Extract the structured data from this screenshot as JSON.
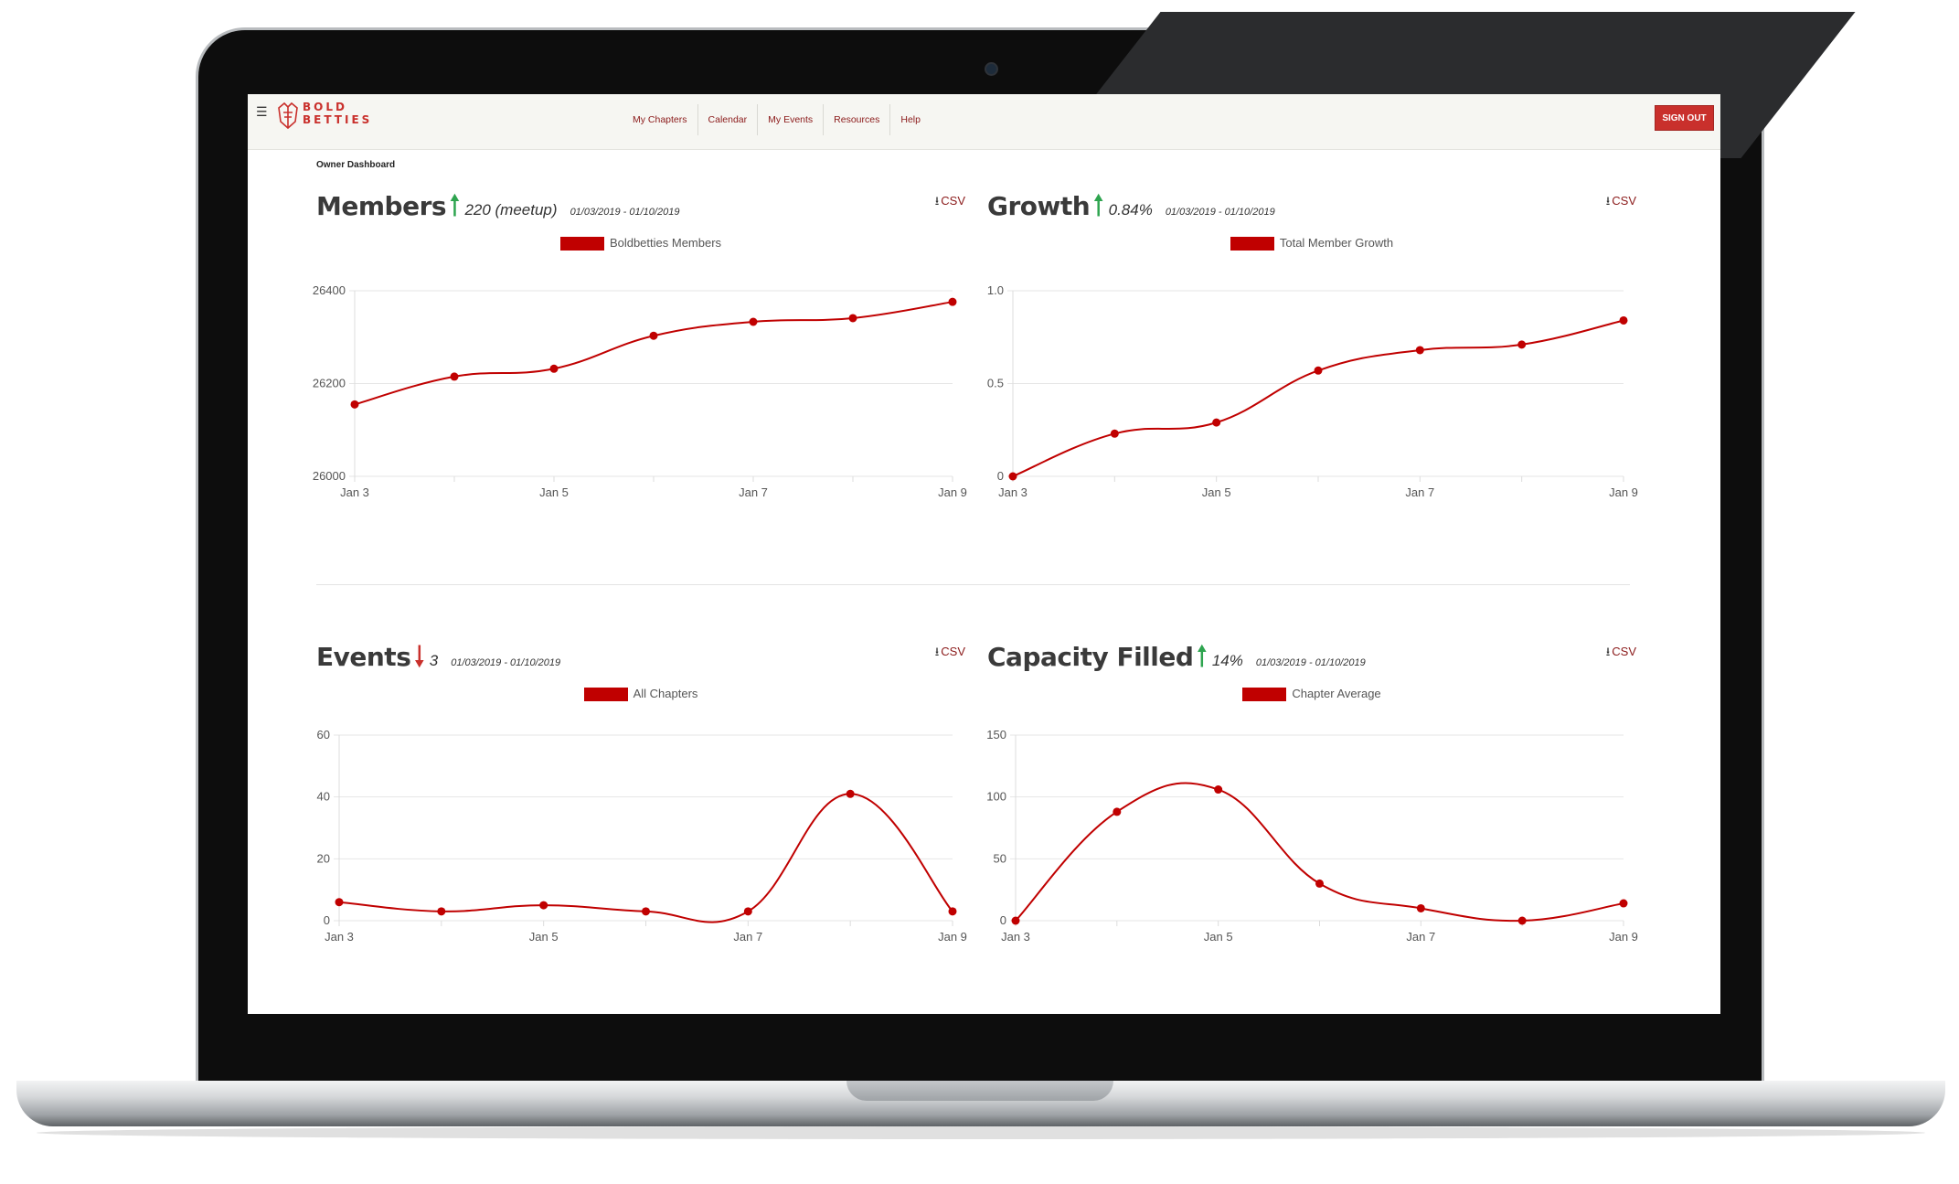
{
  "nav": {
    "logo_text_line1": "BOLD",
    "logo_text_line2": "BETTIES",
    "links": [
      "My Chapters",
      "Calendar",
      "My Events",
      "Resources",
      "Help"
    ],
    "signout": "SIGN OUT"
  },
  "dashboard_title": "Owner Dashboard",
  "colors": {
    "accent": "#c00000",
    "up": "#2ea44f",
    "down": "#c9302c",
    "nav_bg": "#f6f6f2"
  },
  "icons": {
    "menu": "hamburger-icon",
    "download": "download-icon",
    "trend_up": "arrow-up-icon",
    "trend_down": "arrow-down-icon"
  },
  "panels": {
    "members": {
      "title": "Members",
      "trend": "up",
      "stat": "220 (meetup)",
      "range": "01/03/2019 - 01/10/2019",
      "csv": "CSV"
    },
    "growth": {
      "title": "Growth",
      "trend": "up",
      "stat": "0.84%",
      "range": "01/03/2019 - 01/10/2019",
      "csv": "CSV"
    },
    "events": {
      "title": "Events",
      "trend": "down",
      "stat": "3",
      "range": "01/03/2019 - 01/10/2019",
      "csv": "CSV"
    },
    "capacity": {
      "title": "Capacity Filled",
      "trend": "up",
      "stat": "14%",
      "range": "01/03/2019 - 01/10/2019",
      "csv": "CSV"
    }
  },
  "chart_data": [
    {
      "type": "line",
      "x": [
        "Jan 3",
        "Jan 4",
        "Jan 5",
        "Jan 6",
        "Jan 7",
        "Jan 8",
        "Jan 9"
      ],
      "xticks": [
        "Jan 3",
        "Jan 5",
        "Jan 7",
        "Jan 9"
      ],
      "series": [
        {
          "name": "Boldbetties Members",
          "values": [
            26155,
            26215,
            26232,
            26303,
            26333,
            26341,
            26376
          ]
        }
      ],
      "ylim": [
        26000,
        26400
      ],
      "yticks": [
        26000,
        26200,
        26400
      ],
      "grid": true,
      "legend": "top-center"
    },
    {
      "type": "line",
      "x": [
        "Jan 3",
        "Jan 4",
        "Jan 5",
        "Jan 6",
        "Jan 7",
        "Jan 8",
        "Jan 9"
      ],
      "xticks": [
        "Jan 3",
        "Jan 5",
        "Jan 7",
        "Jan 9"
      ],
      "series": [
        {
          "name": "Total Member Growth",
          "values": [
            0,
            0.23,
            0.29,
            0.57,
            0.68,
            0.71,
            0.84
          ]
        }
      ],
      "ylim": [
        0,
        1.0
      ],
      "yticks": [
        0,
        0.5,
        1.0
      ],
      "ytick_labels": [
        "0",
        "0.5",
        "1.0"
      ],
      "grid": true,
      "legend": "top-center"
    },
    {
      "type": "line",
      "x": [
        "Jan 3",
        "Jan 4",
        "Jan 5",
        "Jan 6",
        "Jan 7",
        "Jan 8",
        "Jan 9"
      ],
      "xticks": [
        "Jan 3",
        "Jan 5",
        "Jan 7",
        "Jan 9"
      ],
      "series": [
        {
          "name": "All Chapters",
          "values": [
            6,
            3,
            5,
            3,
            3,
            41,
            3
          ]
        }
      ],
      "ylim": [
        0,
        60
      ],
      "yticks": [
        0,
        20,
        40,
        60
      ],
      "grid": true,
      "legend": "top-center"
    },
    {
      "type": "line",
      "x": [
        "Jan 3",
        "Jan 4",
        "Jan 5",
        "Jan 6",
        "Jan 7",
        "Jan 8",
        "Jan 9"
      ],
      "xticks": [
        "Jan 3",
        "Jan 5",
        "Jan 7",
        "Jan 9"
      ],
      "series": [
        {
          "name": "Chapter Average",
          "values": [
            0,
            88,
            106,
            30,
            10,
            0,
            14
          ]
        }
      ],
      "ylim": [
        0,
        150
      ],
      "yticks": [
        0,
        50,
        100,
        150
      ],
      "grid": true,
      "legend": "top-center"
    }
  ]
}
